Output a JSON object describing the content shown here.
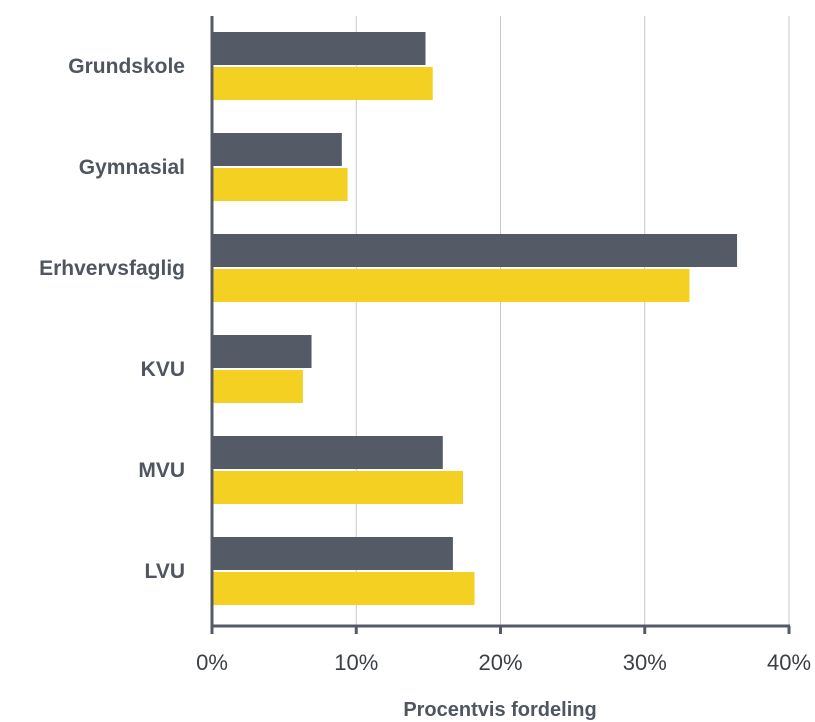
{
  "chart_data": {
    "type": "bar",
    "orientation": "horizontal",
    "categories": [
      "Grundskole",
      "Gymnasial",
      "Erhvervsfaglig",
      "KVU",
      "MVU",
      "LVU"
    ],
    "series": [
      {
        "values": [
          14.8,
          9.0,
          36.4,
          6.9,
          16.0,
          16.7
        ],
        "color": "#545b66"
      },
      {
        "values": [
          15.3,
          9.4,
          33.1,
          6.3,
          17.4,
          18.2
        ],
        "color": "#f3d022"
      }
    ],
    "xlabel": "Procentvis fordeling",
    "xlim": [
      0,
      40
    ],
    "ticks": [
      "0%",
      "10%",
      "20%",
      "30%",
      "40%"
    ],
    "grid": true,
    "axis_color": "#545b66",
    "grid_color": "#c8c8c8"
  }
}
